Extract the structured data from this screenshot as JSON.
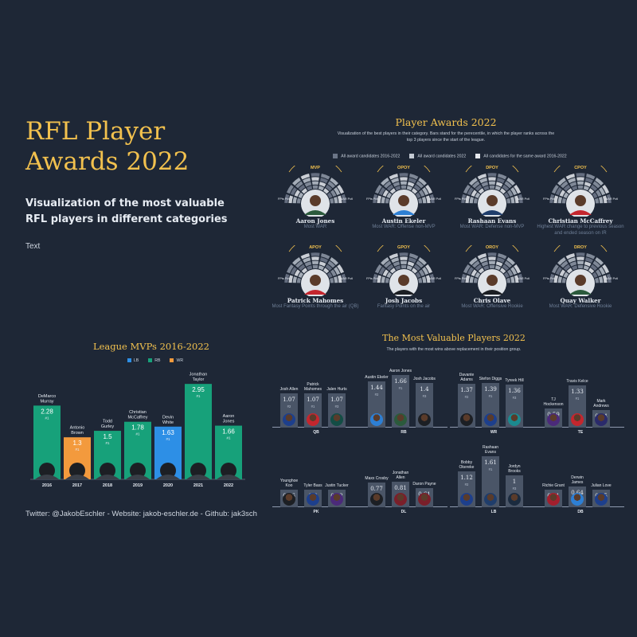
{
  "header": {
    "title": "RFL Player Awards 2022",
    "subtitle": "Visualization of the most valuable RFL players in different categories",
    "text": "Text",
    "footer": "Twitter: @JakobEschler - Website: jakob-eschler.de - Github: jak3sch"
  },
  "awards": {
    "title": "Player Awards 2022",
    "subtitle": "Visualization of the best players in their category. Bars stand for the perecentile, in which the player ranks across the top 3 players since the start of the league.",
    "legend": [
      "All award candidates 2016-2022",
      "All award candidates 2022",
      "All candidates for the same award 2016-2022"
    ],
    "legend_colors": [
      "#6b7587",
      "#c4cad3",
      "#e6e9ee"
    ],
    "axis_left": "FPts Pctl",
    "axis_right": "WAR Pctl",
    "items": [
      {
        "code": "MVP",
        "name": "Aaron Jones",
        "desc": "Most WAR",
        "color": "#2b5a3c"
      },
      {
        "code": "OPOY",
        "name": "Austin Ekeler",
        "desc": "Most WAR: Offense non-MVP",
        "color": "#2d7fd4"
      },
      {
        "code": "DPOY",
        "name": "Rashaan Evans",
        "desc": "Most WAR: Defense non-MVP",
        "color": "#1f3d6b"
      },
      {
        "code": "CPOY",
        "name": "Christian McCaffrey",
        "desc": "Highest WAR change to previous season and ended season on IR",
        "color": "#c4262e"
      },
      {
        "code": "APOY",
        "name": "Patrick Mahomes",
        "desc": "Most Fantasy Points through the air (QB)",
        "color": "#c4262e"
      },
      {
        "code": "GPOY",
        "name": "Josh Jacobs",
        "desc": "Fantasy Points on the air",
        "color": "#1c1f24"
      },
      {
        "code": "OROY",
        "name": "Chris Olave",
        "desc": "Most WAR: Offensive Rookie",
        "color": "#1c1f24"
      },
      {
        "code": "DROY",
        "name": "Quay Walker",
        "desc": "Most WAR: Defensive Rookie",
        "color": "#2b5a3c"
      }
    ]
  },
  "mvp": {
    "title": "League MVPs 2016-2022",
    "legend": [
      {
        "label": "LB",
        "color": "#2d8fe6"
      },
      {
        "label": "RB",
        "color": "#17a17a"
      },
      {
        "label": "WR",
        "color": "#f39a3d"
      }
    ]
  },
  "chart_data": [
    {
      "type": "bar",
      "title": "League MVPs 2016-2022",
      "categories": [
        "2016",
        "2017",
        "2018",
        "2019",
        "2020",
        "2021",
        "2022"
      ],
      "values": [
        2.28,
        1.3,
        1.5,
        1.78,
        1.63,
        2.95,
        1.66
      ],
      "players": [
        "DeMarco Murray",
        "Antonio Brown",
        "Todd Gurley",
        "Christian McCaffrey",
        "Devin White",
        "Jonathan Taylor",
        "Aaron Jones"
      ],
      "positions": [
        "RB",
        "WR",
        "RB",
        "RB",
        "LB",
        "RB",
        "RB"
      ],
      "ranks": [
        "#1",
        "#1",
        "#1",
        "#1",
        "#1",
        "#1",
        "#1"
      ],
      "ylim": [
        0,
        3.2
      ]
    },
    {
      "type": "bar",
      "title": "The Most Valuable Players 2022",
      "subtitle": "The players with the most wins above replacement in their position group.",
      "groups": [
        {
          "label": "QB",
          "players": [
            {
              "name": "Josh Allen",
              "value": 1.07,
              "rank": "#2",
              "color": "#1d3f8c"
            },
            {
              "name": "Patrick Mahomes",
              "value": 1.07,
              "rank": "#1",
              "color": "#c4262e"
            },
            {
              "name": "Jalen Hurts",
              "value": 1.07,
              "rank": "#3",
              "color": "#134d45"
            }
          ]
        },
        {
          "label": "RB",
          "players": [
            {
              "name": "Austin Ekeler",
              "value": 1.44,
              "rank": "#2",
              "color": "#2d7fd4"
            },
            {
              "name": "Aaron Jones",
              "value": 1.66,
              "rank": "#1",
              "color": "#2b5a3c"
            },
            {
              "name": "Josh Jacobs",
              "value": 1.4,
              "rank": "#3",
              "color": "#1c1f24"
            }
          ]
        },
        {
          "label": "WR",
          "players": [
            {
              "name": "Davante Adams",
              "value": 1.37,
              "rank": "#2",
              "color": "#1c1f24"
            },
            {
              "name": "Stefon Diggs",
              "value": 1.39,
              "rank": "#1",
              "color": "#1d3f8c"
            },
            {
              "name": "Tyreek Hill",
              "value": 1.36,
              "rank": "#3",
              "color": "#1b8a8f"
            }
          ]
        },
        {
          "label": "TE",
          "players": [
            {
              "name": "TJ Hockenson",
              "value": 0.59,
              "rank": "#2",
              "color": "#4b2a7a"
            },
            {
              "name": "Travis Kelce",
              "value": 1.33,
              "rank": "#1",
              "color": "#c4262e"
            },
            {
              "name": "Mark Andrews",
              "value": 0.44,
              "rank": "#3",
              "color": "#2a2a6b"
            }
          ]
        },
        {
          "label": "PK",
          "players": [
            {
              "name": "Younghoe Koo",
              "value": 0.26,
              "rank": "#2",
              "color": "#1c1f24"
            },
            {
              "name": "Tyler Bass",
              "value": 0.3,
              "rank": "#1",
              "color": "#1d3f8c"
            },
            {
              "name": "Justin Tucker",
              "value": 0.22,
              "rank": "#3",
              "color": "#4b2a7a"
            }
          ]
        },
        {
          "label": "DL",
          "players": [
            {
              "name": "Maxx Crosby",
              "value": 0.77,
              "rank": "#2",
              "color": "#1c1f24"
            },
            {
              "name": "Jonathan Allen",
              "value": 0.81,
              "rank": "#1",
              "color": "#7a1f2a"
            },
            {
              "name": "Daron Payne",
              "value": 0.61,
              "rank": "#3",
              "color": "#7a1f2a"
            }
          ]
        },
        {
          "label": "LB",
          "players": [
            {
              "name": "Bobby Okereke",
              "value": 1.12,
              "rank": "#2",
              "color": "#1d3f8c"
            },
            {
              "name": "Rashaan Evans",
              "value": 1.61,
              "rank": "#1",
              "color": "#1f3d6b"
            },
            {
              "name": "Jordyn Brooks",
              "value": 1,
              "rank": "#3",
              "color": "#1b2b3f"
            }
          ]
        },
        {
          "label": "DB",
          "players": [
            {
              "name": "Richie Grant",
              "value": 0.51,
              "rank": "#2",
              "color": "#a31f2e"
            },
            {
              "name": "Derwin James",
              "value": 0.64,
              "rank": "#1",
              "color": "#2d7fd4"
            },
            {
              "name": "Julian Love",
              "value": 0.45,
              "rank": "#3",
              "color": "#1d3f8c"
            }
          ]
        }
      ],
      "ylim": [
        0,
        1.8
      ]
    }
  ]
}
